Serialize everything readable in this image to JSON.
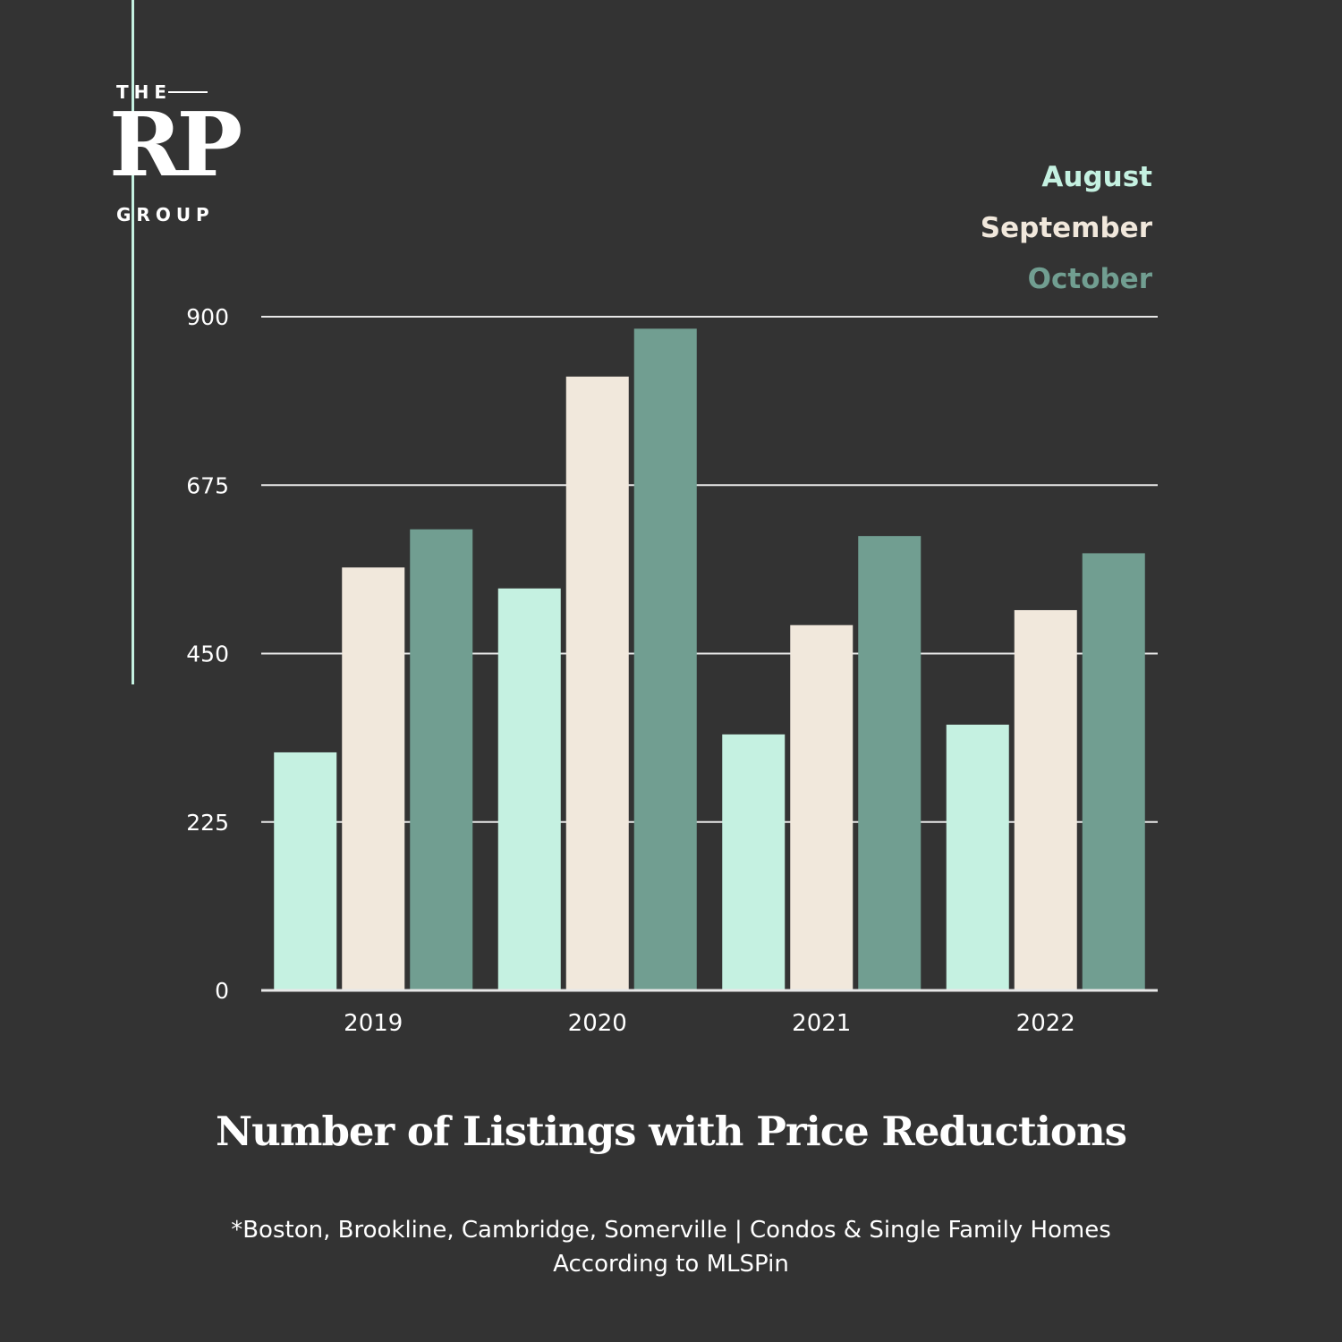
{
  "logo": {
    "the": "THE",
    "rp": "RP",
    "group": "GROUP"
  },
  "colors": {
    "background": "#333333",
    "accent": "#c5f1e1",
    "august": "#c5f1e1",
    "september": "#f1e8dc",
    "october": "#719e91",
    "gridline": "#e8e8e8",
    "text": "#ffffff"
  },
  "chart_data": {
    "type": "bar",
    "title": "Number of Listings with Price Reductions",
    "categories": [
      "2019",
      "2020",
      "2021",
      "2022"
    ],
    "series": [
      {
        "name": "August",
        "color": "#c5f1e1",
        "values": [
          318,
          537,
          342,
          355
        ]
      },
      {
        "name": "September",
        "color": "#f1e8dc",
        "values": [
          565,
          820,
          488,
          508
        ]
      },
      {
        "name": "October",
        "color": "#719e91",
        "values": [
          616,
          884,
          607,
          584
        ]
      }
    ],
    "yticks": [
      0,
      225,
      450,
      675,
      900
    ],
    "ylim": [
      0,
      900
    ],
    "xlabel": "",
    "ylabel": "",
    "legend_position": "top-right",
    "grid": true
  },
  "footnote": {
    "line1": "*Boston, Brookline, Cambridge, Somerville | Condos & Single Family Homes",
    "line2": "According to MLSPin"
  }
}
